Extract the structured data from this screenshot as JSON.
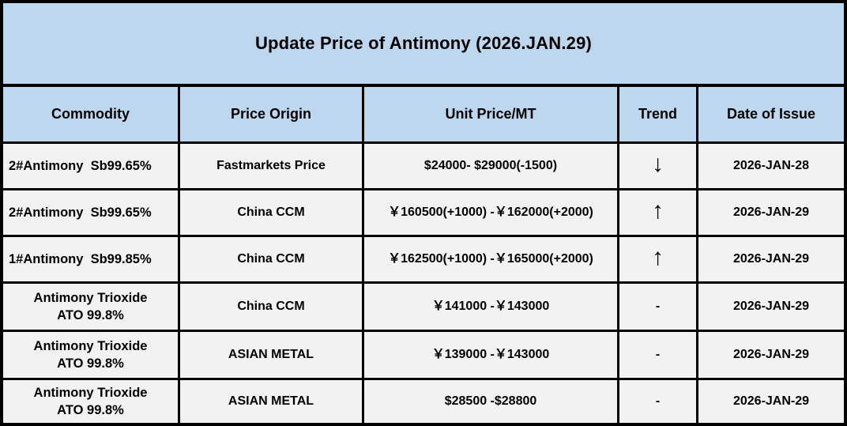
{
  "title": "Update Price of Antimony (2026.JAN.29)",
  "colors": {
    "header_bg": "#BDD7EE",
    "row_bg": "#F2F2F2",
    "border": "#000000",
    "text": "#000000"
  },
  "table": {
    "columns": [
      "Commodity",
      "Price Origin",
      "Unit Price/MT",
      "Trend",
      "Date of Issue"
    ],
    "rows": [
      {
        "commodity": "2#Antimony  Sb99.65%",
        "price_origin": "Fastmarkets Price",
        "unit_price": "$24000- $29000(-1500)",
        "trend": "↓",
        "date_of_issue": "2026-JAN-28"
      },
      {
        "commodity": "2#Antimony  Sb99.65%",
        "price_origin": "China CCM",
        "unit_price": "￥160500(+1000) -￥162000(+2000)",
        "trend": "↑",
        "date_of_issue": "2026-JAN-29"
      },
      {
        "commodity": "1#Antimony  Sb99.85%",
        "price_origin": "China CCM",
        "unit_price": "￥162500(+1000) -￥165000(+2000)",
        "trend": "↑",
        "date_of_issue": "2026-JAN-29"
      },
      {
        "commodity": "Antimony Trioxide\nATO 99.8%",
        "price_origin": "China CCM",
        "unit_price": "￥141000 -￥143000",
        "trend": "-",
        "date_of_issue": "2026-JAN-29"
      },
      {
        "commodity": "Antimony Trioxide\nATO 99.8%",
        "price_origin": "ASIAN METAL",
        "unit_price": "￥139000 -￥143000",
        "trend": "-",
        "date_of_issue": "2026-JAN-29"
      },
      {
        "commodity": "Antimony Trioxide\nATO 99.8%",
        "price_origin": "ASIAN METAL",
        "unit_price": "$28500 -$28800",
        "trend": "-",
        "date_of_issue": "2026-JAN-29"
      }
    ]
  }
}
